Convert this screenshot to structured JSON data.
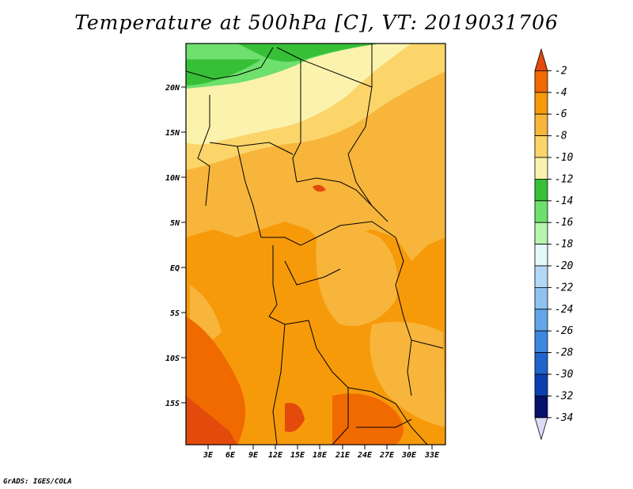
{
  "title": "Temperature at 500hPa [C], VT: 2019031706",
  "footer": "GrADS: IGES/COLA",
  "map": {
    "lon_ticks": [
      "3E",
      "6E",
      "9E",
      "12E",
      "15E",
      "18E",
      "21E",
      "24E",
      "27E",
      "30E",
      "33E"
    ],
    "lat_ticks": [
      "20N",
      "15N",
      "10N",
      "5N",
      "EQ",
      "5S",
      "10S",
      "15S"
    ]
  },
  "colorbar": {
    "labels": [
      "-2",
      "-4",
      "-6",
      "-8",
      "-10",
      "-12",
      "-14",
      "-16",
      "-18",
      "-20",
      "-22",
      "-24",
      "-26",
      "-28",
      "-30",
      "-32",
      "-34"
    ],
    "colors": [
      "#e34a0b",
      "#f06a00",
      "#f69a0a",
      "#f7b53b",
      "#fbd56a",
      "#fbf3ad",
      "#37c037",
      "#6ee06e",
      "#b5f5b0",
      "#e3f8f8",
      "#b3d8f5",
      "#8ec3f0",
      "#63a7ea",
      "#3b87e0",
      "#1f63cc",
      "#0b3fb0",
      "#08106e",
      "#dcdcf8"
    ]
  }
}
